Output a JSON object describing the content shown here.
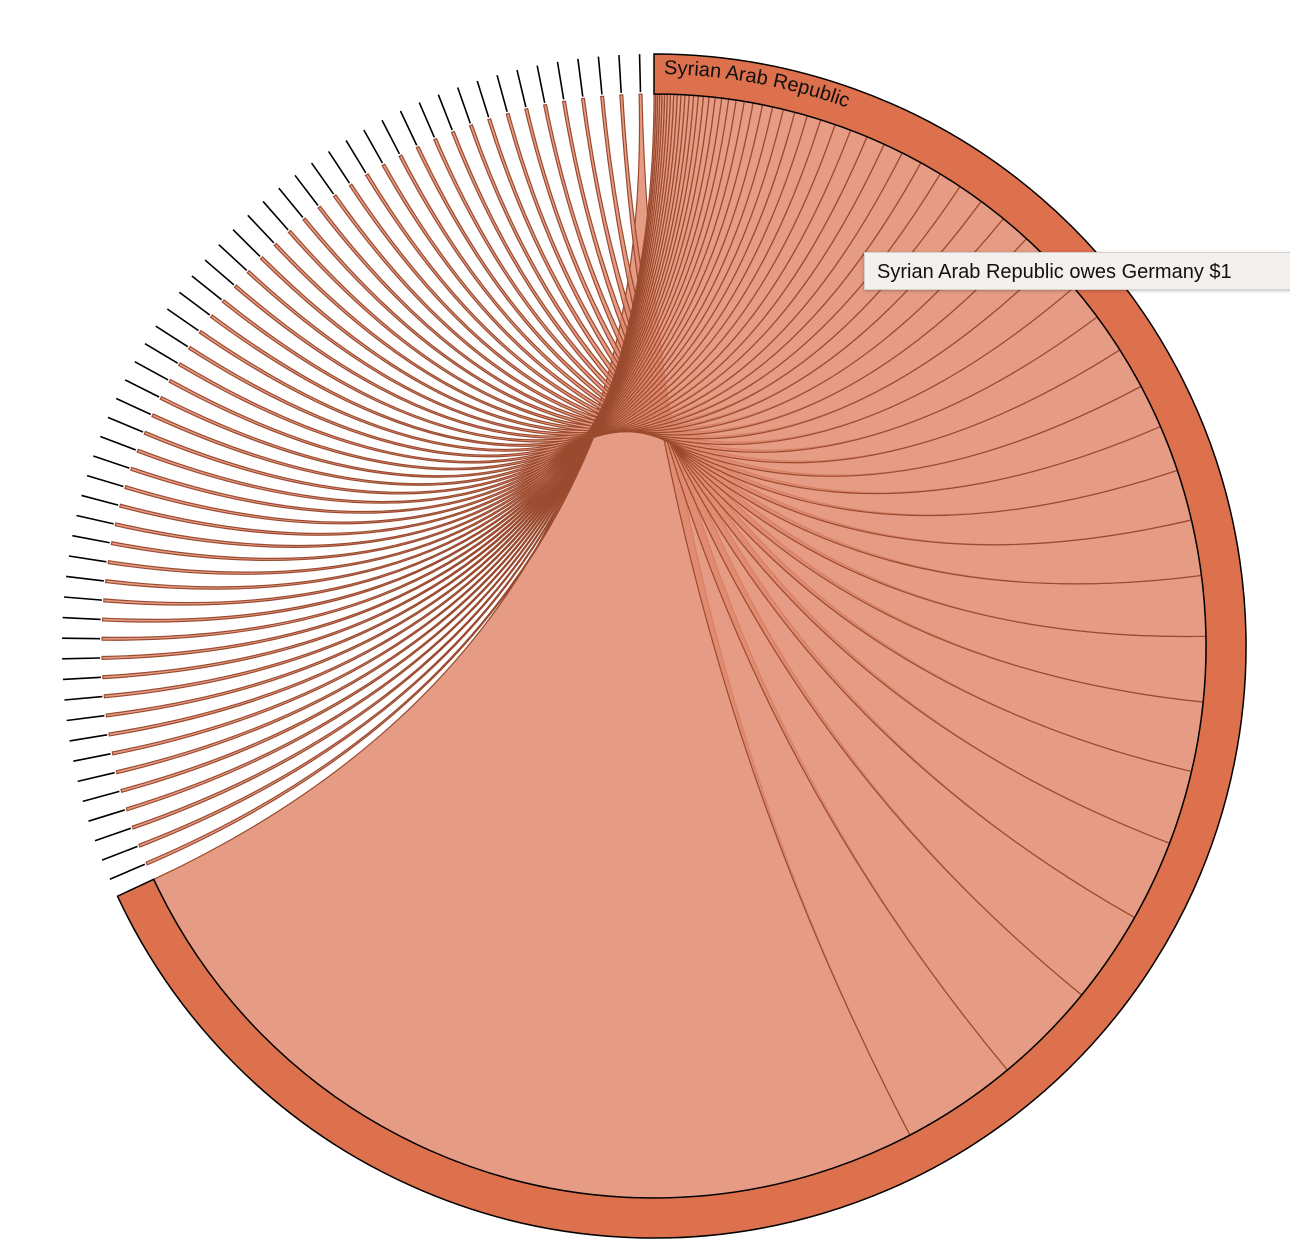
{
  "chart_data": {
    "type": "chord",
    "highlighted_group": "Syrian Arab Republic",
    "tooltip_text": "Syrian Arab Republic owes Germany $1",
    "chord_values": [
      38,
      5,
      4.5,
      4,
      3.5,
      3.2,
      3,
      2.8,
      2.6,
      2.4,
      2.2,
      2,
      1.9,
      1.8,
      1.7,
      1.6,
      1.5,
      1.4,
      1.3,
      1.2,
      1.1,
      1,
      0.95,
      0.9,
      0.85,
      0.8,
      0.75,
      0.7,
      0.65,
      0.6,
      0.55,
      0.5,
      0.47,
      0.44,
      0.41,
      0.38,
      0.35,
      0.32,
      0.3,
      0.28,
      0.26,
      0.24,
      0.22,
      0.2,
      0.19,
      0.18,
      0.17,
      0.16,
      0.15,
      0.14,
      0.13,
      0.12,
      0.11,
      0.1,
      0.09,
      0.08,
      0.07
    ],
    "colors": {
      "group_arc": "#dd704d",
      "ribbon_fill": "#e08a6e",
      "ribbon_stroke": "#9a4a2f",
      "tick": "#000000"
    }
  }
}
